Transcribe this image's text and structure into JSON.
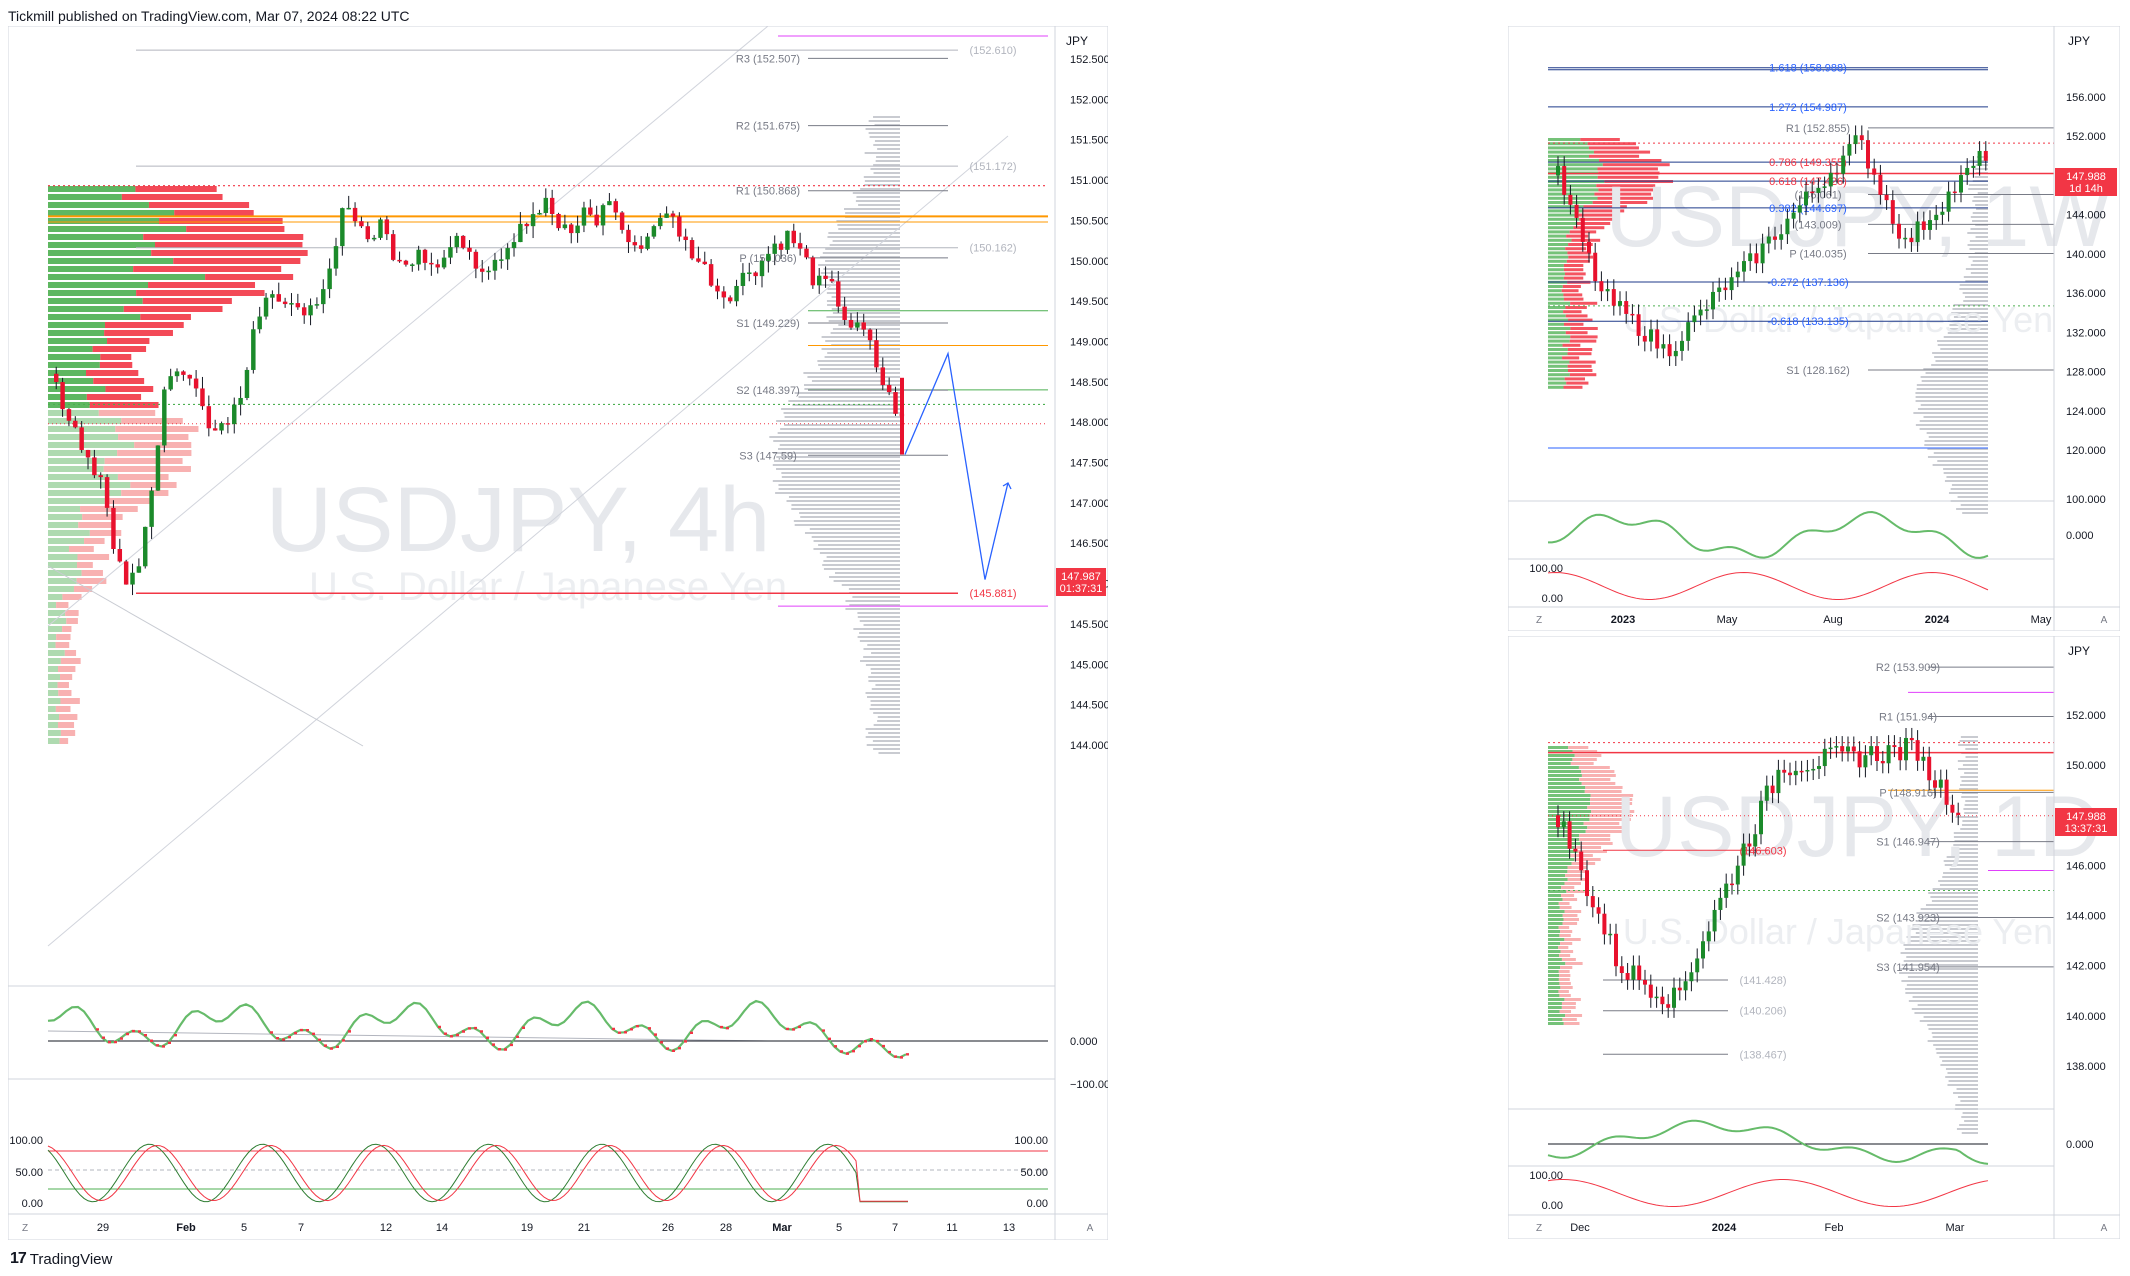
{
  "header": {
    "published": "Tickmill published on TradingView.com, Mar 07, 2024 08:22 UTC"
  },
  "footer": {
    "brand": "TradingView"
  },
  "panels": {
    "main": {
      "watermark_title": "USDJPY, 4h",
      "watermark_subtitle": "U.S. Dollar / Japanese Yen",
      "currency": "JPY",
      "price_ticks": [
        "152.500",
        "152.000",
        "151.500",
        "151.000",
        "150.500",
        "150.000",
        "149.500",
        "149.000",
        "148.500",
        "148.000",
        "147.500",
        "147.000",
        "146.500",
        "146.000",
        "145.500",
        "145.000",
        "144.500",
        "144.000"
      ],
      "price_label": "147.987",
      "countdown": "01:37:31",
      "pivots": [
        {
          "label": "R3 (152.507)",
          "price": 152.507
        },
        {
          "label": "R2 (151.675)",
          "price": 151.675
        },
        {
          "label": "R1 (150.868)",
          "price": 150.868
        },
        {
          "label": "P (150.036)",
          "price": 150.036
        },
        {
          "label": "S1 (149.229)",
          "price": 149.229
        },
        {
          "label": "S2 (148.397)",
          "price": 148.397
        },
        {
          "label": "S3 (147.59)",
          "price": 147.59
        }
      ],
      "levels": [
        {
          "label": "(152.610)",
          "price": 152.61
        },
        {
          "label": "(151.172)",
          "price": 151.172
        },
        {
          "label": "(150.162)",
          "price": 150.162
        },
        {
          "label": "(145.881)",
          "price": 145.881
        }
      ],
      "osc1_ticks": [
        "0.000",
        "−100.000"
      ],
      "osc2_ticks": [
        "100.00",
        "50.00",
        "0.00"
      ],
      "time_ticks": [
        "29",
        "Feb",
        "5",
        "7",
        "12",
        "14",
        "19",
        "21",
        "26",
        "28",
        "Mar",
        "5",
        "7",
        "11",
        "13"
      ],
      "corner": "Z",
      "auto": "A"
    },
    "weekly": {
      "watermark_title": "USDJPY, 1W",
      "watermark_subtitle": "U.S. Dollar / Japanese Yen",
      "currency": "JPY",
      "price_ticks": [
        "156.000",
        "152.000",
        "148.000",
        "144.000",
        "140.000",
        "136.000",
        "132.000",
        "128.000",
        "124.000",
        "120.000"
      ],
      "price_label": "147.988",
      "countdown": "1d 14h",
      "fibs": [
        {
          "label": "1.618 (158.988)",
          "price": 158.988
        },
        {
          "label": "1.272 (154.987)",
          "price": 154.987
        },
        {
          "label": "0.786 (149.355)",
          "price": 149.355
        },
        {
          "label": "0.618 (147.426)",
          "price": 147.426
        },
        {
          "label": "0.382 (144.697)",
          "price": 144.697
        },
        {
          "label": "-0.272 (137.136)",
          "price": 137.136
        },
        {
          "label": "-0.618 (133.135)",
          "price": 133.135
        }
      ],
      "pivots": [
        {
          "label": "R1 (152.855)",
          "price": 152.855
        },
        {
          "label": "(146.061)",
          "price": 146.061
        },
        {
          "label": "(143.009)",
          "price": 143.009
        },
        {
          "label": "P (140.035)",
          "price": 140.035
        },
        {
          "label": "S1 (128.162)",
          "price": 128.162
        }
      ],
      "osc1_ticks": [
        "100.000",
        "0.000"
      ],
      "osc2_ticks": [
        "100.00",
        "0.00"
      ],
      "time_ticks": [
        "2023",
        "May",
        "Aug",
        "2024",
        "May"
      ],
      "corner": "Z",
      "auto": "A"
    },
    "daily": {
      "watermark_title": "USDJPY, 1D",
      "watermark_subtitle": "U.S. Dollar / Japanese Yen",
      "currency": "JPY",
      "price_ticks": [
        "152.000",
        "150.000",
        "148.000",
        "146.000",
        "144.000",
        "142.000",
        "140.000",
        "138.000"
      ],
      "price_label": "147.988",
      "countdown": "13:37:31",
      "pivots": [
        {
          "label": "R2 (153.909)",
          "price": 153.909
        },
        {
          "label": "R1 (151.94)",
          "price": 151.94
        },
        {
          "label": "P (148.916)",
          "price": 148.916
        },
        {
          "label": "S1 (146.947)",
          "price": 146.947
        },
        {
          "label": "S2 (143.923)",
          "price": 143.923
        },
        {
          "label": "S3 (141.954)",
          "price": 141.954
        }
      ],
      "levels": [
        {
          "label": "(146.603)",
          "price": 146.603
        },
        {
          "label": "(141.428)",
          "price": 141.428
        },
        {
          "label": "(140.206)",
          "price": 140.206
        },
        {
          "label": "(138.467)",
          "price": 138.467
        }
      ],
      "osc1_ticks": [
        "0.000"
      ],
      "osc2_ticks": [
        "100.00",
        "0.00"
      ],
      "time_ticks": [
        "Dec",
        "2024",
        "Feb",
        "Mar"
      ],
      "corner": "Z",
      "auto": "A"
    }
  },
  "chart_data": [
    {
      "type": "candlestick",
      "title": "USDJPY, 4h",
      "ylim": [
        143.9,
        152.9
      ],
      "current_price": 147.987,
      "series": [
        {
          "name": "USDJPY 4h close (approx.)",
          "values": [
            148.2,
            148.0,
            147.6,
            147.2,
            146.4,
            146.1,
            146.3,
            147.2,
            148.4,
            148.7,
            148.5,
            148.3,
            147.9,
            148.1,
            148.4,
            149.2,
            149.5,
            149.4,
            149.6,
            149.2,
            149.4,
            149.8,
            150.7,
            150.6,
            150.3,
            150.4,
            150.1,
            149.9,
            150.2,
            150.0,
            150.1,
            150.3,
            150.0,
            149.9,
            150.1,
            150.2,
            150.5,
            150.6,
            150.7,
            150.4,
            150.3,
            150.6,
            150.5,
            150.8,
            150.4,
            150.1,
            150.3,
            150.6,
            150.5,
            150.2,
            150.0,
            149.8,
            149.6,
            149.7,
            149.9,
            150.0,
            150.2,
            150.3,
            150.1,
            149.8,
            149.7,
            149.5,
            149.2,
            149.1,
            148.7,
            148.3,
            148.0
          ]
        }
      ],
      "projection": [
        {
          "label": "start",
          "price": 147.6
        },
        {
          "label": "up",
          "price": 148.85
        },
        {
          "label": "down",
          "price": 146.05
        },
        {
          "label": "up",
          "price": 147.25
        }
      ]
    },
    {
      "type": "candlestick",
      "title": "USDJPY, 1W",
      "ylim": [
        117.5,
        159.5
      ],
      "current_price": 147.988
    },
    {
      "type": "candlestick",
      "title": "USDJPY, 1D",
      "ylim": [
        136.5,
        154.5
      ],
      "current_price": 147.988
    }
  ]
}
